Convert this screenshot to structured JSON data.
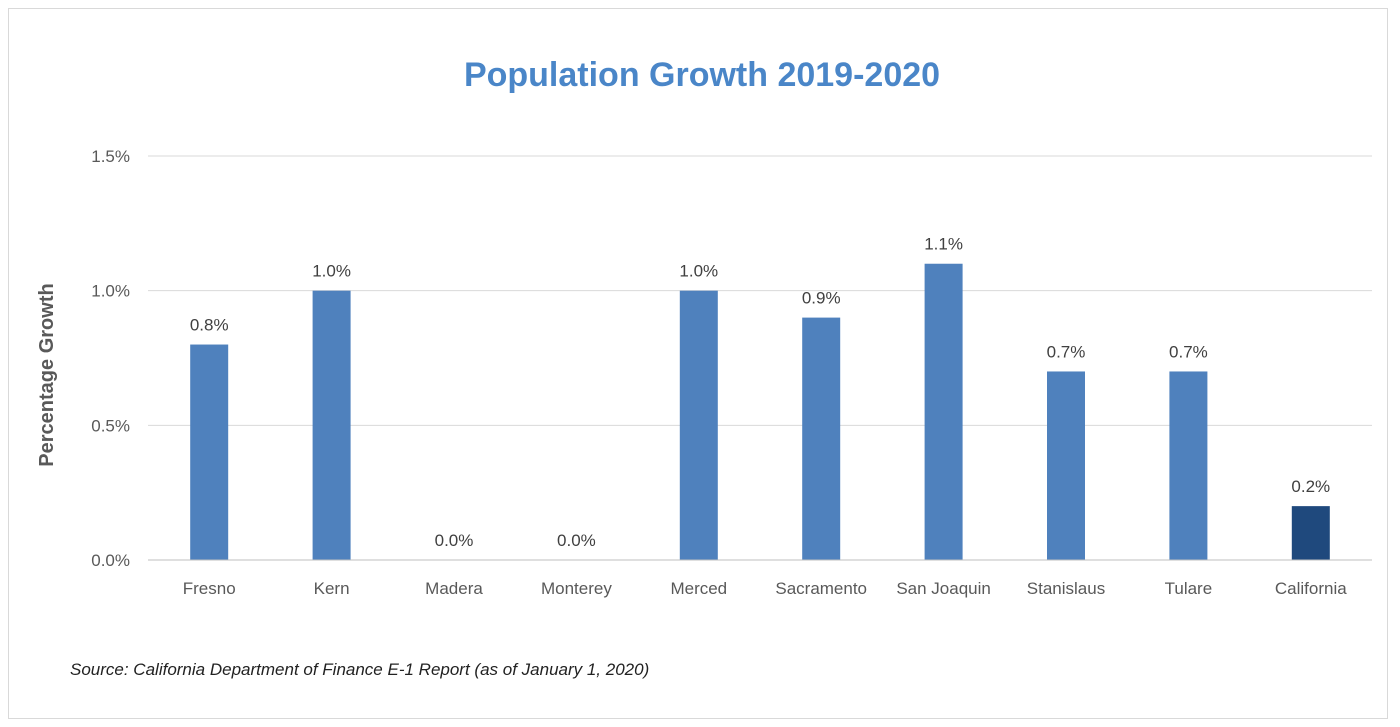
{
  "chart_data": {
    "type": "bar",
    "title": "Population Growth 2019-2020",
    "ylabel": "Percentage Growth",
    "xlabel": "",
    "categories": [
      "Fresno",
      "Kern",
      "Madera",
      "Monterey",
      "Merced",
      "Sacramento",
      "San Joaquin",
      "Stanislaus",
      "Tulare",
      "California"
    ],
    "values": [
      0.8,
      1.0,
      0.0,
      0.0,
      1.0,
      0.9,
      1.1,
      0.7,
      0.7,
      0.2
    ],
    "data_labels": [
      "0.8%",
      "1.0%",
      "0.0%",
      "0.0%",
      "1.0%",
      "0.9%",
      "1.1%",
      "0.7%",
      "0.7%",
      "0.2%"
    ],
    "ylim": [
      0,
      1.5
    ],
    "yticks": [
      0,
      0.5,
      1.0,
      1.5
    ],
    "ytick_labels": [
      "0.0%",
      "0.5%",
      "1.0%",
      "1.5%"
    ],
    "grid": true,
    "legend": "none",
    "colors": {
      "bar": "#4f81bd",
      "highlight_bar": "#1f497d",
      "title": "#4a86c8"
    },
    "highlight_category": "California",
    "source_note": "Source:  California Department of Finance E-1 Report (as of January 1, 2020)"
  }
}
